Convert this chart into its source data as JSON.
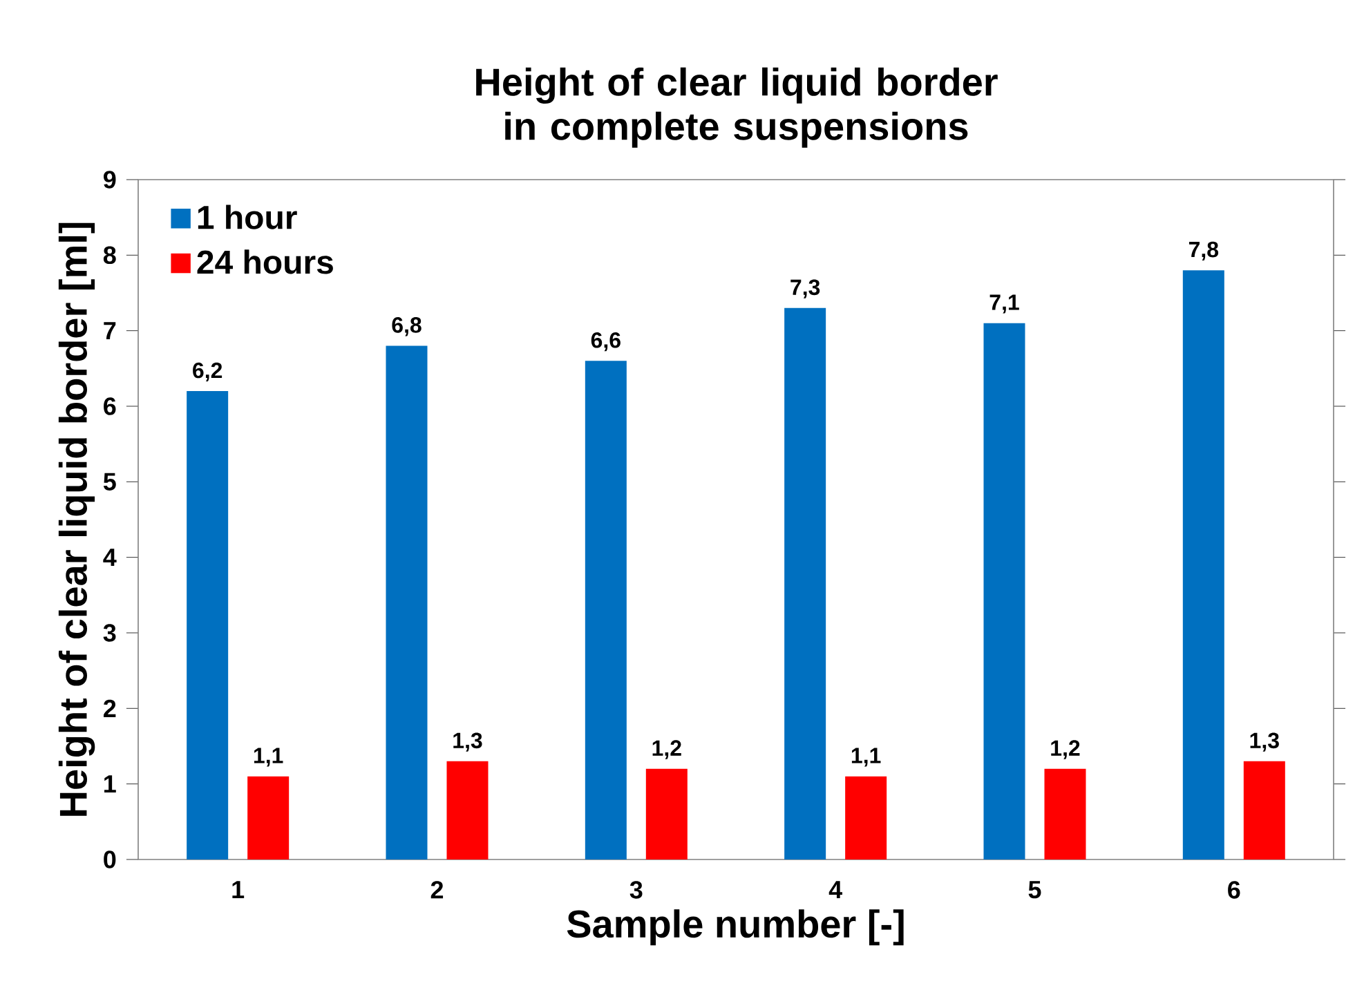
{
  "chart_data": {
    "type": "bar",
    "title": "Height of clear liquid border in complete suspensions",
    "xlabel": "Sample number [-]",
    "ylabel": "Height of clear liquid border [ml]",
    "categories": [
      "1",
      "2",
      "3",
      "4",
      "5",
      "6"
    ],
    "series": [
      {
        "name": "1 hour",
        "color": "#0070c0",
        "values": [
          6.2,
          6.8,
          6.6,
          7.3,
          7.1,
          7.8
        ],
        "value_labels": [
          "6,2",
          "6,8",
          "6,6",
          "7,3",
          "7,1",
          "7,8"
        ]
      },
      {
        "name": "24 hours",
        "color": "#ff0000",
        "values": [
          1.1,
          1.3,
          1.2,
          1.1,
          1.2,
          1.3
        ],
        "value_labels": [
          "1,1",
          "1,3",
          "1,2",
          "1,1",
          "1,2",
          "1,3"
        ]
      }
    ],
    "ylim": [
      0,
      9
    ],
    "yticks": [
      0,
      1,
      2,
      3,
      4,
      5,
      6,
      7,
      8,
      9
    ],
    "legend": "top left"
  }
}
